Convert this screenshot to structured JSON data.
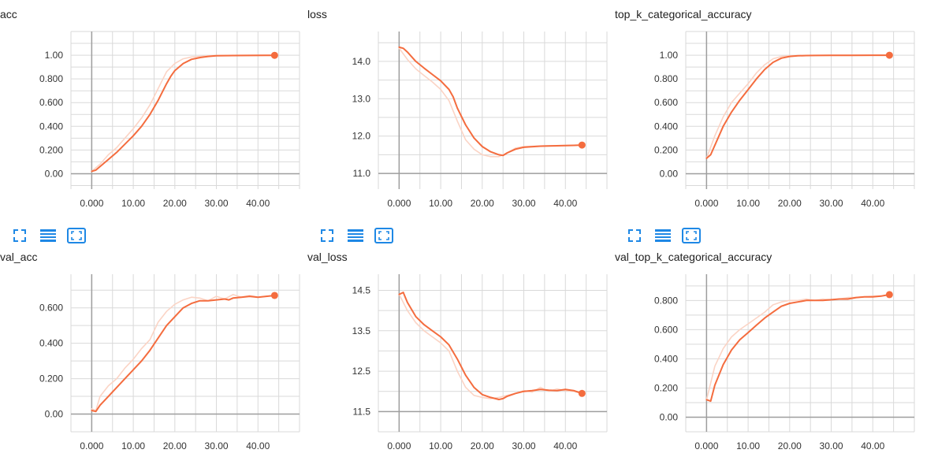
{
  "theme": {
    "series_color": "#f46c3e",
    "raw_color": "#fbd4c5",
    "grid_color": "#d9d9d9",
    "axis_color": "#9e9e9e",
    "icon_color": "#1e88e5"
  },
  "toolbar": {
    "icons": [
      "fullscreen-icon",
      "data-table-icon",
      "fit-domain-icon"
    ]
  },
  "chart_data": [
    {
      "type": "line",
      "title": "acc",
      "x_ticks": [
        "0.000",
        "10.00",
        "20.00",
        "30.00",
        "40.00"
      ],
      "y_ticks": [
        {
          "value": 0.0,
          "label": "0.00"
        },
        {
          "value": 0.2,
          "label": "0.200"
        },
        {
          "value": 0.4,
          "label": "0.400"
        },
        {
          "value": 0.6,
          "label": "0.600"
        },
        {
          "value": 0.8,
          "label": "0.800"
        },
        {
          "value": 1.0,
          "label": "1.00"
        }
      ],
      "xlim": [
        -5,
        50
      ],
      "ylim": [
        -0.13,
        1.2
      ],
      "grid": true,
      "series": [
        {
          "role": "smoothed",
          "x": [
            0,
            1,
            2,
            4,
            6,
            8,
            10,
            12,
            14,
            16,
            18,
            19,
            20,
            22,
            24,
            26,
            28,
            30,
            34,
            38,
            42,
            44
          ],
          "y": [
            0.02,
            0.03,
            0.06,
            0.12,
            0.18,
            0.25,
            0.32,
            0.4,
            0.5,
            0.62,
            0.76,
            0.82,
            0.87,
            0.93,
            0.965,
            0.98,
            0.99,
            0.995,
            0.997,
            0.998,
            0.999,
            0.999
          ]
        },
        {
          "role": "raw",
          "x": [
            0,
            2,
            4,
            6,
            8,
            10,
            12,
            14,
            16,
            18,
            20,
            22,
            24,
            26,
            28,
            30,
            35,
            40,
            44
          ],
          "y": [
            0.02,
            0.08,
            0.16,
            0.22,
            0.3,
            0.38,
            0.47,
            0.58,
            0.72,
            0.86,
            0.93,
            0.97,
            0.985,
            0.99,
            0.995,
            0.998,
            0.999,
            1.0,
            1.0
          ]
        }
      ]
    },
    {
      "type": "line",
      "title": "loss",
      "x_ticks": [
        "0.000",
        "10.00",
        "20.00",
        "30.00",
        "40.00"
      ],
      "y_ticks": [
        {
          "value": 11.0,
          "label": "11.0"
        },
        {
          "value": 12.0,
          "label": "12.0"
        },
        {
          "value": 13.0,
          "label": "13.0"
        },
        {
          "value": 14.0,
          "label": "14.0"
        }
      ],
      "xlim": [
        -5,
        50
      ],
      "ylim": [
        10.58,
        14.8
      ],
      "grid": true,
      "series": [
        {
          "role": "smoothed",
          "x": [
            0,
            1,
            2,
            4,
            6,
            8,
            10,
            12,
            13,
            14,
            16,
            18,
            20,
            22,
            24,
            25,
            26,
            28,
            30,
            34,
            38,
            42,
            44
          ],
          "y": [
            14.38,
            14.35,
            14.25,
            14.0,
            13.82,
            13.65,
            13.48,
            13.25,
            13.05,
            12.75,
            12.3,
            11.95,
            11.72,
            11.58,
            11.5,
            11.48,
            11.55,
            11.65,
            11.7,
            11.73,
            11.74,
            11.75,
            11.76
          ]
        },
        {
          "role": "raw",
          "x": [
            0,
            2,
            4,
            6,
            8,
            10,
            12,
            14,
            16,
            18,
            20,
            22,
            24,
            26,
            28,
            30,
            35,
            40,
            44
          ],
          "y": [
            14.35,
            14.05,
            13.8,
            13.62,
            13.45,
            13.25,
            12.95,
            12.4,
            11.9,
            11.65,
            11.5,
            11.45,
            11.45,
            11.55,
            11.68,
            11.72,
            11.74,
            11.75,
            11.76
          ]
        }
      ]
    },
    {
      "type": "line",
      "title": "top_k_categorical_accuracy",
      "x_ticks": [
        "0.000",
        "10.00",
        "20.00",
        "30.00",
        "40.00"
      ],
      "y_ticks": [
        {
          "value": 0.0,
          "label": "0.00"
        },
        {
          "value": 0.2,
          "label": "0.200"
        },
        {
          "value": 0.4,
          "label": "0.400"
        },
        {
          "value": 0.6,
          "label": "0.600"
        },
        {
          "value": 0.8,
          "label": "0.800"
        },
        {
          "value": 1.0,
          "label": "1.00"
        }
      ],
      "xlim": [
        -5,
        50
      ],
      "ylim": [
        -0.13,
        1.2
      ],
      "grid": true,
      "series": [
        {
          "role": "smoothed",
          "x": [
            0,
            1,
            2,
            4,
            6,
            8,
            10,
            12,
            14,
            16,
            18,
            20,
            22,
            24,
            26,
            30,
            35,
            40,
            44
          ],
          "y": [
            0.13,
            0.16,
            0.24,
            0.4,
            0.52,
            0.62,
            0.71,
            0.8,
            0.88,
            0.94,
            0.975,
            0.99,
            0.995,
            0.997,
            0.998,
            0.999,
            0.999,
            1.0,
            1.0
          ]
        },
        {
          "role": "raw",
          "x": [
            0,
            2,
            4,
            6,
            8,
            10,
            12,
            14,
            16,
            18,
            20,
            24,
            30,
            40,
            44
          ],
          "y": [
            0.13,
            0.32,
            0.48,
            0.6,
            0.68,
            0.76,
            0.85,
            0.92,
            0.97,
            0.99,
            0.995,
            0.998,
            1.0,
            1.0,
            1.0
          ]
        }
      ]
    },
    {
      "type": "line",
      "title": "val_acc",
      "x_ticks": [
        "0.000",
        "10.00",
        "20.00",
        "30.00",
        "40.00"
      ],
      "y_ticks": [
        {
          "value": 0.0,
          "label": "0.00"
        },
        {
          "value": 0.2,
          "label": "0.200"
        },
        {
          "value": 0.4,
          "label": "0.400"
        },
        {
          "value": 0.6,
          "label": "0.600"
        }
      ],
      "xlim": [
        -5,
        50
      ],
      "ylim": [
        -0.1,
        0.79
      ],
      "grid": true,
      "series": [
        {
          "role": "smoothed",
          "x": [
            0,
            1,
            2,
            4,
            6,
            8,
            10,
            12,
            14,
            16,
            18,
            20,
            22,
            24,
            26,
            28,
            30,
            32,
            33,
            34,
            36,
            38,
            40,
            42,
            44
          ],
          "y": [
            0.02,
            0.015,
            0.05,
            0.1,
            0.15,
            0.2,
            0.25,
            0.3,
            0.36,
            0.43,
            0.5,
            0.55,
            0.6,
            0.625,
            0.64,
            0.64,
            0.645,
            0.65,
            0.645,
            0.655,
            0.66,
            0.665,
            0.66,
            0.665,
            0.67
          ]
        },
        {
          "role": "raw",
          "x": [
            0,
            1,
            2,
            4,
            6,
            8,
            10,
            12,
            14,
            16,
            18,
            20,
            22,
            24,
            26,
            28,
            30,
            32,
            34,
            36,
            38,
            40,
            42,
            44
          ],
          "y": [
            0.03,
            0.02,
            0.1,
            0.16,
            0.2,
            0.26,
            0.31,
            0.37,
            0.42,
            0.52,
            0.58,
            0.62,
            0.645,
            0.66,
            0.655,
            0.64,
            0.665,
            0.65,
            0.675,
            0.66,
            0.67,
            0.66,
            0.665,
            0.67
          ]
        }
      ]
    },
    {
      "type": "line",
      "title": "val_loss",
      "x_ticks": [
        "0.000",
        "10.00",
        "20.00",
        "30.00",
        "40.00"
      ],
      "y_ticks": [
        {
          "value": 11.5,
          "label": "11.5"
        },
        {
          "value": 12.5,
          "label": "12.5"
        },
        {
          "value": 13.5,
          "label": "13.5"
        },
        {
          "value": 14.5,
          "label": "14.5"
        }
      ],
      "xlim": [
        -5,
        50
      ],
      "ylim": [
        11.0,
        14.9
      ],
      "grid": true,
      "series": [
        {
          "role": "smoothed",
          "x": [
            0,
            1,
            2,
            4,
            6,
            8,
            10,
            12,
            14,
            16,
            18,
            20,
            22,
            24,
            25,
            26,
            28,
            30,
            32,
            34,
            36,
            38,
            40,
            42,
            44
          ],
          "y": [
            14.4,
            14.45,
            14.2,
            13.85,
            13.65,
            13.5,
            13.35,
            13.15,
            12.8,
            12.4,
            12.1,
            11.92,
            11.85,
            11.8,
            11.82,
            11.88,
            11.95,
            12.0,
            12.02,
            12.05,
            12.03,
            12.02,
            12.05,
            12.02,
            11.95
          ]
        },
        {
          "role": "raw",
          "x": [
            0,
            2,
            4,
            6,
            8,
            10,
            12,
            14,
            16,
            18,
            20,
            22,
            24,
            26,
            28,
            30,
            32,
            34,
            36,
            38,
            40,
            42,
            44
          ],
          "y": [
            14.4,
            14.0,
            13.7,
            13.5,
            13.35,
            13.2,
            13.0,
            12.5,
            12.1,
            11.9,
            11.85,
            11.82,
            11.85,
            11.9,
            11.95,
            12.02,
            11.98,
            12.1,
            12.0,
            12.06,
            12.02,
            12.0,
            11.95
          ]
        }
      ]
    },
    {
      "type": "line",
      "title": "val_top_k_categorical_accuracy",
      "x_ticks": [
        "0.000",
        "10.00",
        "20.00",
        "30.00",
        "40.00"
      ],
      "y_ticks": [
        {
          "value": 0.0,
          "label": "0.00"
        },
        {
          "value": 0.2,
          "label": "0.200"
        },
        {
          "value": 0.4,
          "label": "0.400"
        },
        {
          "value": 0.6,
          "label": "0.600"
        },
        {
          "value": 0.8,
          "label": "0.800"
        }
      ],
      "xlim": [
        -5,
        50
      ],
      "ylim": [
        -0.1,
        0.98
      ],
      "grid": true,
      "series": [
        {
          "role": "smoothed",
          "x": [
            0,
            1,
            2,
            4,
            6,
            8,
            10,
            12,
            14,
            16,
            18,
            20,
            22,
            24,
            26,
            28,
            30,
            32,
            34,
            36,
            38,
            40,
            42,
            44
          ],
          "y": [
            0.12,
            0.11,
            0.22,
            0.36,
            0.46,
            0.53,
            0.58,
            0.63,
            0.68,
            0.72,
            0.76,
            0.78,
            0.79,
            0.8,
            0.8,
            0.8,
            0.805,
            0.81,
            0.81,
            0.82,
            0.825,
            0.825,
            0.83,
            0.84
          ]
        },
        {
          "role": "raw",
          "x": [
            0,
            2,
            4,
            6,
            8,
            10,
            12,
            14,
            16,
            18,
            20,
            22,
            24,
            26,
            28,
            30,
            32,
            34,
            36,
            38,
            40,
            42,
            44
          ],
          "y": [
            0.12,
            0.35,
            0.47,
            0.55,
            0.6,
            0.64,
            0.68,
            0.72,
            0.77,
            0.79,
            0.8,
            0.8,
            0.81,
            0.8,
            0.81,
            0.805,
            0.81,
            0.82,
            0.82,
            0.825,
            0.83,
            0.83,
            0.84
          ]
        }
      ]
    }
  ]
}
